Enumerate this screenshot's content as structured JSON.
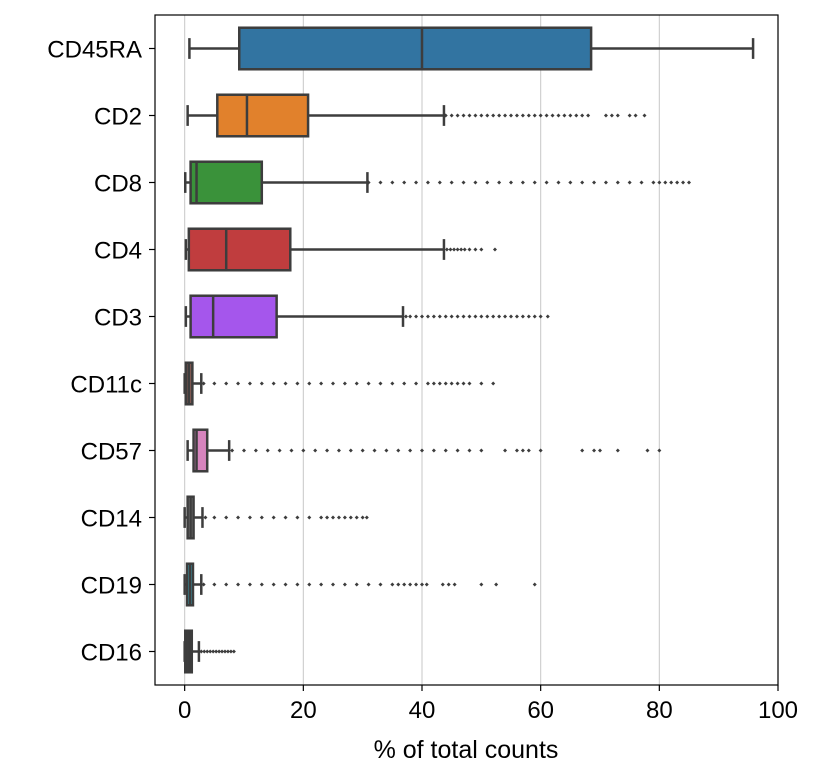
{
  "chart_data": {
    "type": "box",
    "orientation": "horizontal",
    "xlabel": "% of total counts",
    "ylabel": "",
    "title": "",
    "xlim": [
      -5,
      100
    ],
    "xticks": [
      0,
      20,
      40,
      60,
      80,
      100
    ],
    "grid": "vertical",
    "legend": "none",
    "categories": [
      "CD45RA",
      "CD2",
      "CD8",
      "CD4",
      "CD3",
      "CD11c",
      "CD57",
      "CD14",
      "CD19",
      "CD16"
    ],
    "boxes": [
      {
        "category": "CD45RA",
        "color": "#3274a1",
        "whisker_low": 0.8,
        "q1": 9.2,
        "median": 40.0,
        "q3": 68.5,
        "whisker_high": 95.8,
        "outliers": []
      },
      {
        "category": "CD2",
        "color": "#e1812c",
        "whisker_low": 0.5,
        "q1": 5.5,
        "median": 10.5,
        "q3": 20.8,
        "whisker_high": 43.7,
        "outliers": [
          44,
          45,
          46,
          47,
          48,
          49,
          50,
          51,
          52,
          53,
          54,
          55,
          56,
          57,
          58,
          59,
          60,
          61,
          62,
          63,
          64,
          65,
          66,
          67,
          68,
          71,
          72,
          73,
          75,
          76,
          77.5
        ]
      },
      {
        "category": "CD8",
        "color": "#3a923a",
        "whisker_low": 0.1,
        "q1": 1.0,
        "median": 2.0,
        "q3": 13.0,
        "whisker_high": 30.8,
        "outliers": [
          31,
          33,
          35,
          37,
          39,
          41,
          43,
          45,
          47,
          49,
          51,
          53,
          55,
          57,
          59,
          61,
          63,
          65,
          67,
          69,
          71,
          73,
          75,
          77,
          79,
          80,
          81,
          82,
          83,
          84,
          85
        ]
      },
      {
        "category": "CD4",
        "color": "#c03d3e",
        "whisker_low": 0.2,
        "q1": 0.7,
        "median": 7.0,
        "q3": 17.8,
        "whisker_high": 43.7,
        "outliers": [
          44.2,
          44.8,
          45.4,
          46,
          46.6,
          47.2,
          48,
          49,
          50,
          52.3
        ]
      },
      {
        "category": "CD3",
        "color": "#9372b2",
        "fill": "#a556ec",
        "whisker_low": 0.2,
        "q1": 1.0,
        "median": 4.8,
        "q3": 15.5,
        "whisker_high": 36.8,
        "outliers": [
          37.3,
          38,
          39,
          40,
          41,
          42,
          43,
          44,
          45,
          46,
          47,
          48,
          49,
          50,
          51,
          52,
          53,
          54,
          55,
          56,
          57,
          58,
          59,
          60,
          61.2
        ]
      },
      {
        "category": "CD11c",
        "color": "#845b53",
        "whisker_low": 0.0,
        "q1": 0.2,
        "median": 0.7,
        "q3": 1.3,
        "whisker_high": 2.8,
        "outliers": [
          3.2,
          5,
          7,
          9,
          11,
          13,
          15,
          17,
          19,
          21,
          23,
          25,
          27,
          29,
          31,
          33,
          35,
          37,
          39,
          41,
          42,
          43,
          44,
          45,
          46,
          47,
          48,
          50,
          52
        ]
      },
      {
        "category": "CD57",
        "color": "#d684bd",
        "whisker_low": 0.5,
        "q1": 1.5,
        "median": 2.0,
        "q3": 3.8,
        "whisker_high": 7.5,
        "outliers": [
          8,
          10,
          12,
          14,
          16,
          18,
          20,
          22,
          24,
          26,
          28,
          30,
          32,
          34,
          36,
          38,
          40,
          42,
          44,
          46,
          48,
          50,
          54,
          56,
          57,
          58,
          60,
          67,
          69,
          70,
          73,
          78,
          80
        ]
      },
      {
        "category": "CD14",
        "color": "#7f7f7f",
        "whisker_low": 0.0,
        "q1": 0.5,
        "median": 1.0,
        "q3": 1.5,
        "whisker_high": 3.0,
        "outliers": [
          3.5,
          5,
          7,
          9,
          11,
          13,
          15,
          17,
          19,
          21,
          23,
          24,
          25,
          26,
          27,
          28,
          29,
          30,
          30.7
        ]
      },
      {
        "category": "CD19",
        "color": "#3a9fb1",
        "whisker_low": 0.0,
        "q1": 0.4,
        "median": 0.9,
        "q3": 1.4,
        "whisker_high": 2.8,
        "outliers": [
          3.2,
          5,
          7,
          9,
          11,
          13,
          15,
          17,
          19,
          21,
          23,
          25,
          27,
          29,
          31,
          33,
          35,
          36,
          37,
          38,
          39,
          40,
          40.8,
          43.5,
          44.5,
          45.5,
          50,
          52.5,
          59
        ]
      },
      {
        "category": "CD16",
        "color": "#3b3b3b",
        "fill": "#3b3b3b",
        "whisker_low": 0.0,
        "q1": 0.1,
        "median": 0.5,
        "q3": 1.2,
        "whisker_high": 2.4,
        "outliers": [
          2.8,
          3.3,
          3.8,
          4.3,
          4.8,
          5.3,
          5.8,
          6.3,
          6.8,
          7.3,
          7.8,
          8.3
        ]
      }
    ]
  }
}
